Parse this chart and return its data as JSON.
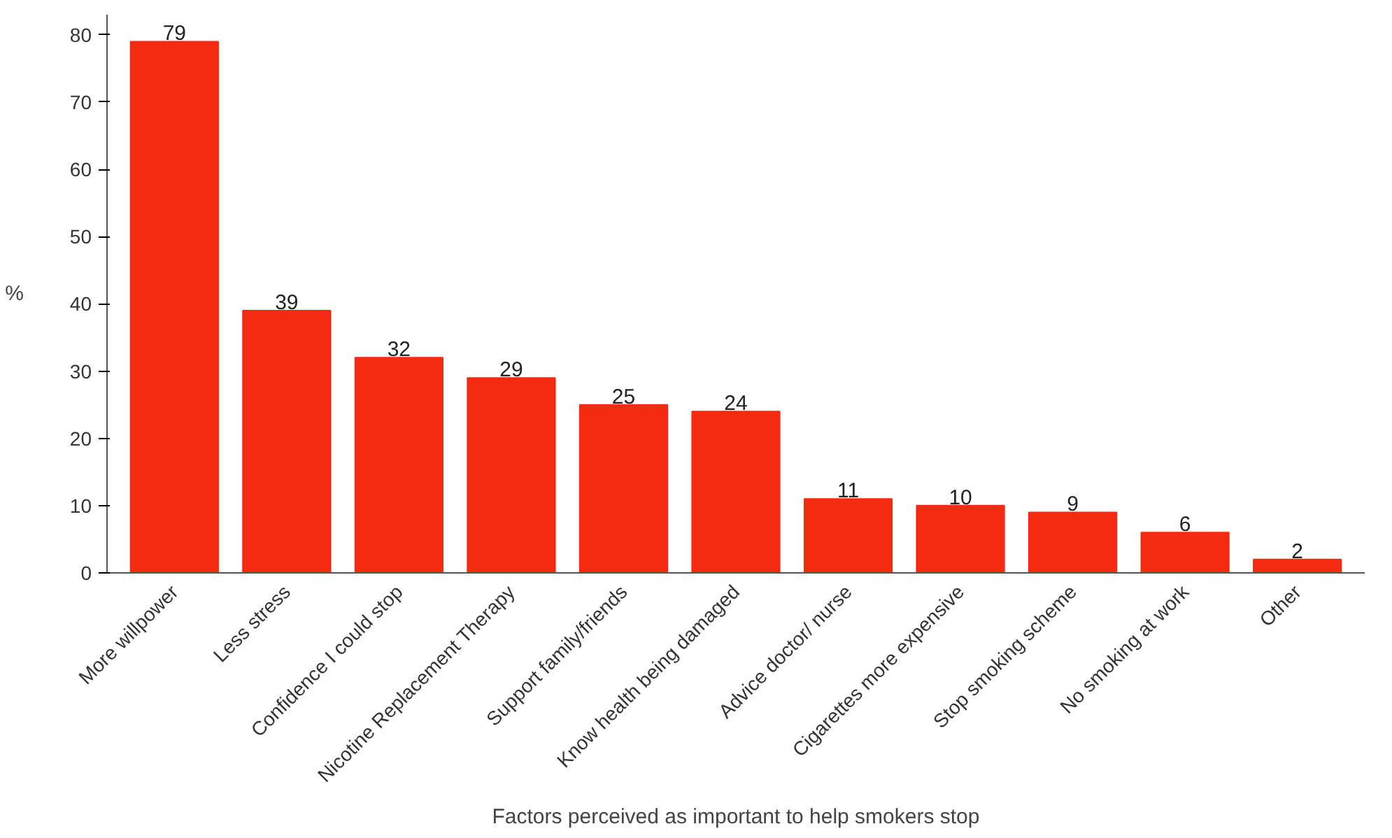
{
  "chart_data": {
    "type": "bar",
    "xlabel": "Factors perceived as important to help smokers stop",
    "ylabel": "%",
    "categories": [
      "More willpower",
      "Less stress",
      "Confidence I could stop",
      "Nicotine Replacement Therapy",
      "Support family/friends",
      "Know health being damaged",
      "Advice doctor/ nurse",
      "Cigarettes more expensive",
      "Stop smoking scheme",
      "No smoking at work",
      "Other"
    ],
    "values": [
      79,
      39,
      32,
      29,
      25,
      24,
      11,
      10,
      9,
      6,
      2
    ],
    "color": "#f52a12",
    "ylim": [
      0,
      83
    ],
    "yticks": [
      0,
      10,
      20,
      30,
      40,
      50,
      60,
      70,
      80
    ],
    "data_labels": true,
    "grid": false
  }
}
